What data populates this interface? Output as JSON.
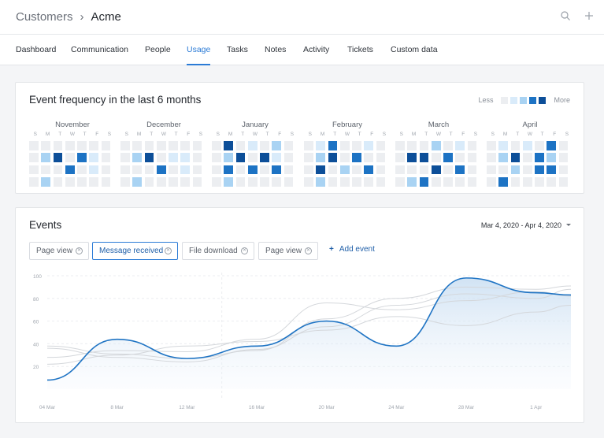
{
  "breadcrumb": {
    "parent": "Customers",
    "separator": "›",
    "current": "Acme"
  },
  "top_icons": [
    "search-icon",
    "plus-icon"
  ],
  "tabs": [
    {
      "label": "Dashboard",
      "active": false
    },
    {
      "label": "Communication",
      "active": false
    },
    {
      "label": "People",
      "active": false
    },
    {
      "label": "Usage",
      "active": true
    },
    {
      "label": "Tasks",
      "active": false
    },
    {
      "label": "Notes",
      "active": false
    },
    {
      "label": "Activity",
      "active": false
    },
    {
      "label": "Tickets",
      "active": false
    },
    {
      "label": "Custom data",
      "active": false
    }
  ],
  "heatmap": {
    "title": "Event frequency in the last 6 months",
    "legend": {
      "less": "Less",
      "more": "More",
      "colors": [
        "#eceef1",
        "#d9ebfa",
        "#a9d3f3",
        "#1d73c4",
        "#0d4f99"
      ]
    },
    "day_letters": [
      "S",
      "M",
      "T",
      "W",
      "T",
      "F",
      "S"
    ],
    "months": [
      {
        "name": "November",
        "levels": [
          [
            0,
            0,
            0,
            0,
            0,
            0,
            0
          ],
          [
            0,
            2,
            4,
            0,
            3,
            1,
            0
          ],
          [
            0,
            0,
            0,
            3,
            0,
            1,
            0
          ],
          [
            0,
            2,
            0,
            0,
            0,
            0,
            0
          ]
        ]
      },
      {
        "name": "December",
        "levels": [
          [
            0,
            0,
            0,
            0,
            0,
            0,
            0
          ],
          [
            0,
            2,
            4,
            0,
            1,
            1,
            0
          ],
          [
            0,
            0,
            0,
            3,
            0,
            1,
            0
          ],
          [
            0,
            2,
            0,
            0,
            0,
            0,
            0
          ]
        ]
      },
      {
        "name": "January",
        "levels": [
          [
            0,
            4,
            0,
            1,
            0,
            2,
            0
          ],
          [
            0,
            2,
            4,
            0,
            4,
            1,
            0
          ],
          [
            0,
            3,
            0,
            3,
            0,
            3,
            0
          ],
          [
            0,
            2,
            0,
            0,
            0,
            0,
            0
          ]
        ]
      },
      {
        "name": "February",
        "levels": [
          [
            0,
            1,
            3,
            0,
            0,
            1,
            0
          ],
          [
            0,
            2,
            4,
            0,
            3,
            0,
            0
          ],
          [
            0,
            4,
            0,
            2,
            0,
            3,
            0
          ],
          [
            0,
            2,
            0,
            0,
            0,
            0,
            0
          ]
        ]
      },
      {
        "name": "March",
        "levels": [
          [
            0,
            0,
            0,
            2,
            0,
            1,
            0
          ],
          [
            0,
            4,
            4,
            0,
            3,
            0,
            0
          ],
          [
            0,
            0,
            0,
            4,
            0,
            3,
            0
          ],
          [
            0,
            2,
            3,
            0,
            0,
            0,
            0
          ]
        ]
      },
      {
        "name": "April",
        "levels": [
          [
            0,
            1,
            0,
            1,
            0,
            3,
            0
          ],
          [
            0,
            2,
            4,
            0,
            3,
            2,
            0
          ],
          [
            0,
            0,
            2,
            0,
            3,
            3,
            0
          ],
          [
            0,
            3,
            0,
            0,
            0,
            0,
            0
          ]
        ]
      }
    ]
  },
  "events": {
    "title": "Events",
    "date_range": "Mar 4, 2020 - Apr 4, 2020",
    "filters": [
      {
        "label": "Page view",
        "selected": false
      },
      {
        "label": "Message received",
        "selected": true
      },
      {
        "label": "File download",
        "selected": false
      },
      {
        "label": "Page view",
        "selected": false
      }
    ],
    "add_event_label": "Add event"
  },
  "chart_data": {
    "type": "line",
    "x": [
      "04 Mar",
      "8 Mar",
      "12 Mar",
      "16 Mar",
      "20 Mar",
      "24 Mar",
      "28 Mar",
      "1 Apr"
    ],
    "yticks": [
      20,
      40,
      60,
      80,
      100
    ],
    "ylim": [
      0,
      100
    ],
    "series": [
      {
        "highlighted": true,
        "color": "#1f74c4",
        "points": [
          [
            0,
            8
          ],
          [
            1,
            44
          ],
          [
            2,
            27
          ],
          [
            3,
            38
          ],
          [
            4,
            60
          ],
          [
            5,
            38
          ],
          [
            6,
            98
          ],
          [
            7,
            85
          ],
          [
            7.5,
            83
          ]
        ]
      },
      {
        "highlighted": false,
        "color": "#d4d7db",
        "points": [
          [
            0,
            38
          ],
          [
            1,
            31
          ],
          [
            2,
            27
          ],
          [
            3,
            34
          ],
          [
            4,
            62
          ],
          [
            5,
            80
          ],
          [
            6,
            90
          ],
          [
            7,
            88
          ],
          [
            7.5,
            91
          ]
        ]
      },
      {
        "highlighted": false,
        "color": "#d4d7db",
        "points": [
          [
            0,
            28
          ],
          [
            1,
            34
          ],
          [
            2,
            33
          ],
          [
            3,
            44
          ],
          [
            4,
            76
          ],
          [
            5,
            70
          ],
          [
            6,
            78
          ],
          [
            7,
            86
          ],
          [
            7.5,
            82
          ]
        ]
      },
      {
        "highlighted": false,
        "color": "#d4d7db",
        "points": [
          [
            0,
            22
          ],
          [
            1,
            30
          ],
          [
            2,
            38
          ],
          [
            3,
            42
          ],
          [
            4,
            52
          ],
          [
            5,
            64
          ],
          [
            6,
            56
          ],
          [
            7,
            68
          ],
          [
            7.5,
            74
          ]
        ]
      },
      {
        "highlighted": false,
        "color": "#d4d7db",
        "points": [
          [
            0,
            36
          ],
          [
            1,
            28
          ],
          [
            2,
            24
          ],
          [
            3,
            35
          ],
          [
            4,
            55
          ],
          [
            5,
            74
          ],
          [
            6,
            84
          ],
          [
            7,
            80
          ],
          [
            7.5,
            88
          ]
        ]
      }
    ]
  }
}
